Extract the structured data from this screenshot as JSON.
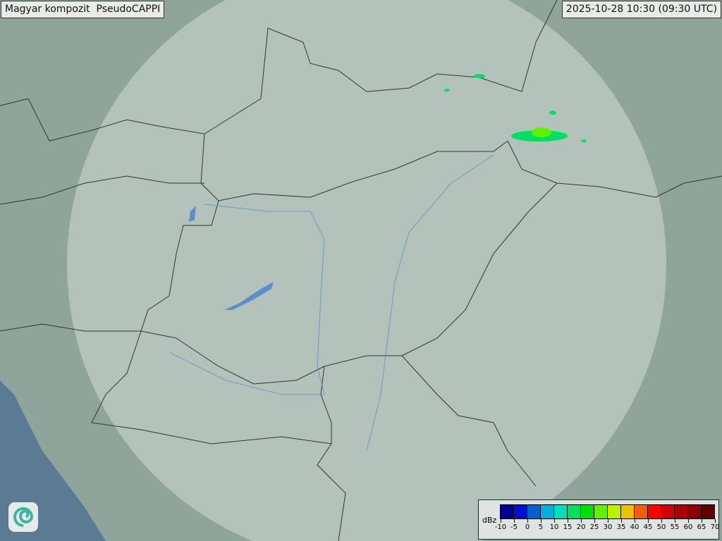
{
  "header": {
    "title": "Magyar kompozit  PseudoCAPPI",
    "timestamp": "2025-10-28 10:30 (09:30 UTC)"
  },
  "map": {
    "land_color": "#8fa59b",
    "coverage_color": "#c9d6cf",
    "sea_color": "#5b7a94",
    "border_color": "#333333",
    "river_color": "#5a8fc8",
    "logo_icon": "swirl-logo-icon"
  },
  "legend": {
    "unit": "dBz",
    "labels": [
      "-10",
      "-5",
      "0",
      "5",
      "10",
      "15",
      "20",
      "25",
      "30",
      "35",
      "40",
      "45",
      "50",
      "55",
      "60",
      "65",
      "70"
    ],
    "colors": [
      "#000090",
      "#0010d0",
      "#0060d0",
      "#00b0e0",
      "#00e0c0",
      "#00e060",
      "#00e000",
      "#60f000",
      "#c0f000",
      "#f0c000",
      "#f06000",
      "#ff0000",
      "#d00000",
      "#b00000",
      "#900000",
      "#600000"
    ]
  }
}
